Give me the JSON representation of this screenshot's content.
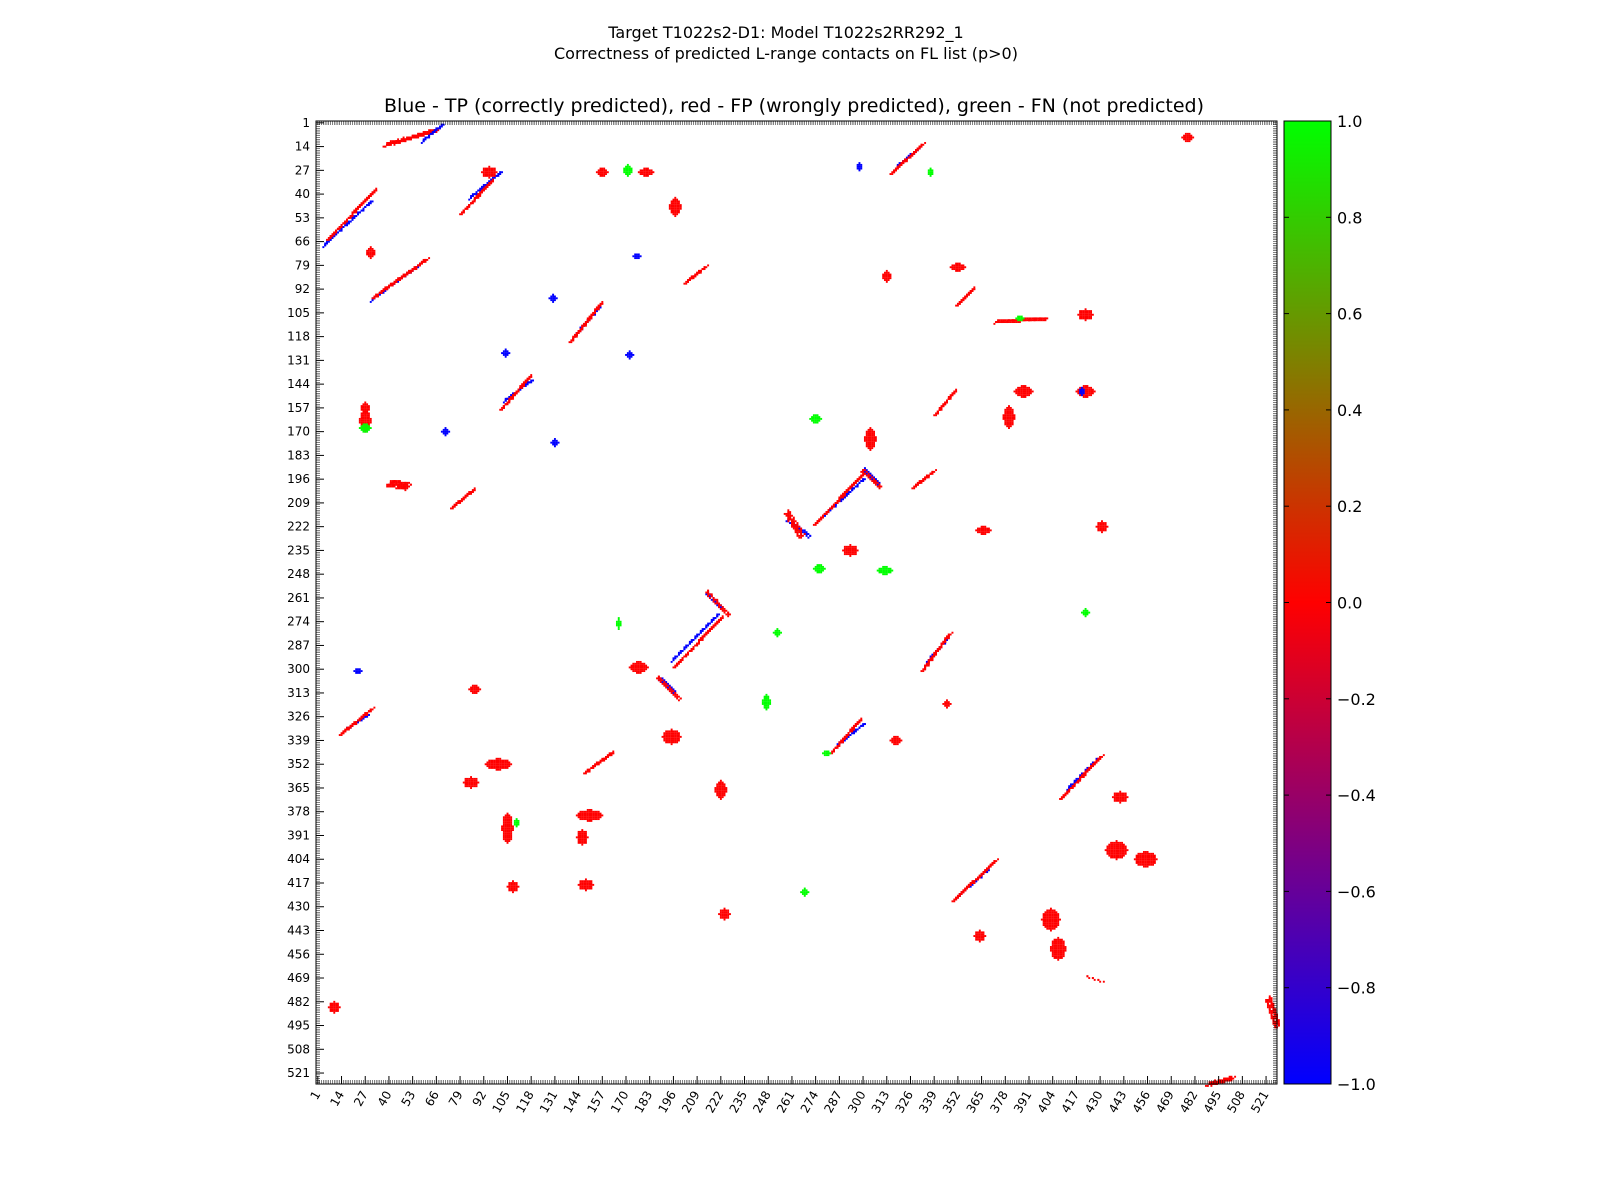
{
  "chart_data": {
    "type": "heatmap",
    "suptitle_line1": "Target T1022s2-D1: Model T1022s2RR292_1",
    "suptitle_line2": "Correctness of predicted L-range contacts on FL list (p>0)",
    "title": "Blue - TP (correctly predicted), red - FP (wrongly predicted), green - FN (not predicted)",
    "n_residues": 527,
    "ticks": [
      "1",
      "14",
      "27",
      "40",
      "53",
      "66",
      "79",
      "92",
      "105",
      "118",
      "131",
      "144",
      "157",
      "170",
      "183",
      "196",
      "209",
      "222",
      "235",
      "248",
      "261",
      "274",
      "287",
      "300",
      "313",
      "326",
      "339",
      "352",
      "365",
      "378",
      "391",
      "404",
      "417",
      "430",
      "443",
      "456",
      "469",
      "482",
      "495",
      "508",
      "521"
    ],
    "colorbar": {
      "range": [
        -1.0,
        1.0
      ],
      "ticks": [
        "1.0",
        "0.8",
        "0.6",
        "0.4",
        "0.2",
        "0.0",
        "−0.2",
        "−0.4",
        "−0.6",
        "−0.8",
        "−1.0"
      ],
      "colors": {
        "tp": "#0000ff",
        "fp": "#ff0000",
        "fn": "#00ff00"
      }
    },
    "segments": [
      {
        "kind": "tp",
        "x0": 4,
        "y0": 68,
        "x1": 30,
        "y1": 44,
        "w": 2
      },
      {
        "kind": "fp",
        "x0": 7,
        "y0": 64,
        "x1": 32,
        "y1": 38,
        "w": 4
      },
      {
        "kind": "tp",
        "x0": 30,
        "y0": 98,
        "x1": 56,
        "y1": 79,
        "w": 2
      },
      {
        "kind": "fp",
        "x0": 32,
        "y0": 96,
        "x1": 60,
        "y1": 76,
        "w": 5
      },
      {
        "kind": "fp",
        "x0": 38,
        "y0": 13,
        "x1": 66,
        "y1": 5,
        "w": 4
      },
      {
        "kind": "tp",
        "x0": 58,
        "y0": 11,
        "x1": 69,
        "y1": 2,
        "w": 2
      },
      {
        "kind": "tp",
        "x0": 84,
        "y0": 42,
        "x1": 101,
        "y1": 28,
        "w": 2
      },
      {
        "kind": "fp",
        "x0": 80,
        "y0": 50,
        "x1": 96,
        "y1": 33,
        "w": 4
      },
      {
        "kind": "tp",
        "x0": 142,
        "y0": 117,
        "x1": 155,
        "y1": 102,
        "w": 2
      },
      {
        "kind": "fp",
        "x0": 140,
        "y0": 120,
        "x1": 156,
        "y1": 100,
        "w": 4
      },
      {
        "kind": "tp",
        "x0": 103,
        "y0": 153,
        "x1": 118,
        "y1": 142,
        "w": 2
      },
      {
        "kind": "fp",
        "x0": 102,
        "y0": 157,
        "x1": 117,
        "y1": 140,
        "w": 4
      },
      {
        "kind": "fp",
        "x0": 75,
        "y0": 211,
        "x1": 86,
        "y1": 202,
        "w": 5
      },
      {
        "kind": "fp",
        "x0": 203,
        "y0": 88,
        "x1": 213,
        "y1": 80,
        "w": 5
      },
      {
        "kind": "fp",
        "x0": 40,
        "y0": 198,
        "x1": 50,
        "y1": 200,
        "w": 6
      },
      {
        "kind": "tp",
        "x0": 258,
        "y0": 218,
        "x1": 270,
        "y1": 227,
        "w": 2
      },
      {
        "kind": "fp",
        "x0": 258,
        "y0": 214,
        "x1": 266,
        "y1": 227,
        "w": 4
      },
      {
        "kind": "tp",
        "x0": 278,
        "y0": 216,
        "x1": 300,
        "y1": 196,
        "w": 2
      },
      {
        "kind": "fp",
        "x0": 274,
        "y0": 220,
        "x1": 300,
        "y1": 193,
        "w": 5
      },
      {
        "kind": "tp",
        "x0": 195,
        "y0": 295,
        "x1": 220,
        "y1": 270,
        "w": 2
      },
      {
        "kind": "fp",
        "x0": 197,
        "y0": 298,
        "x1": 222,
        "y1": 272,
        "w": 5
      },
      {
        "kind": "tp",
        "x0": 214,
        "y0": 258,
        "x1": 222,
        "y1": 266,
        "w": 2
      },
      {
        "kind": "fp",
        "x0": 214,
        "y0": 257,
        "x1": 226,
        "y1": 270,
        "w": 3
      },
      {
        "kind": "tp",
        "x0": 188,
        "y0": 305,
        "x1": 196,
        "y1": 312,
        "w": 2
      },
      {
        "kind": "fp",
        "x0": 187,
        "y0": 304,
        "x1": 199,
        "y1": 316,
        "w": 3
      },
      {
        "kind": "tp",
        "x0": 285,
        "y0": 342,
        "x1": 300,
        "y1": 330,
        "w": 2
      },
      {
        "kind": "fp",
        "x0": 283,
        "y0": 345,
        "x1": 298,
        "y1": 328,
        "w": 5
      },
      {
        "kind": "tp",
        "x0": 334,
        "y0": 297,
        "x1": 346,
        "y1": 283,
        "w": 2
      },
      {
        "kind": "fp",
        "x0": 333,
        "y0": 300,
        "x1": 347,
        "y1": 281,
        "w": 4
      },
      {
        "kind": "tp",
        "x0": 16,
        "y0": 333,
        "x1": 28,
        "y1": 325,
        "w": 2
      },
      {
        "kind": "fp",
        "x0": 14,
        "y0": 335,
        "x1": 30,
        "y1": 322,
        "w": 4
      },
      {
        "kind": "tp",
        "x0": 412,
        "y0": 365,
        "x1": 428,
        "y1": 349,
        "w": 2
      },
      {
        "kind": "fp",
        "x0": 409,
        "y0": 370,
        "x1": 430,
        "y1": 348,
        "w": 4
      },
      {
        "kind": "tp",
        "x0": 352,
        "y0": 424,
        "x1": 368,
        "y1": 410,
        "w": 2
      },
      {
        "kind": "fp",
        "x0": 350,
        "y0": 426,
        "x1": 372,
        "y1": 405,
        "w": 4
      },
      {
        "kind": "fp",
        "x0": 148,
        "y0": 356,
        "x1": 162,
        "y1": 346,
        "w": 5
      },
      {
        "kind": "tp",
        "x0": 318,
        "y0": 25,
        "x1": 330,
        "y1": 15,
        "w": 2
      },
      {
        "kind": "fp",
        "x0": 316,
        "y0": 28,
        "x1": 332,
        "y1": 13,
        "w": 4
      },
      {
        "kind": "tp",
        "x0": 300,
        "y0": 190,
        "x1": 308,
        "y1": 198,
        "w": 2
      },
      {
        "kind": "fp",
        "x0": 299,
        "y0": 191,
        "x1": 309,
        "y1": 200,
        "w": 3
      },
      {
        "kind": "fp",
        "x0": 340,
        "y0": 160,
        "x1": 350,
        "y1": 148,
        "w": 5
      },
      {
        "kind": "fp",
        "x0": 328,
        "y0": 200,
        "x1": 338,
        "y1": 192,
        "w": 5
      },
      {
        "kind": "fp",
        "x0": 352,
        "y0": 100,
        "x1": 360,
        "y1": 92,
        "w": 4
      },
      {
        "kind": "fp",
        "x0": 372,
        "y0": 110,
        "x1": 400,
        "y1": 108,
        "w": 3
      },
      {
        "kind": "fp",
        "x0": 422,
        "y0": 468,
        "x1": 431,
        "y1": 471,
        "w": 0
      },
      {
        "kind": "fp",
        "x0": 489,
        "y0": 527,
        "x1": 502,
        "y1": 524,
        "w": 4
      },
      {
        "kind": "fp",
        "x0": 522,
        "y0": 480,
        "x1": 527,
        "y1": 495,
        "w": 5
      }
    ],
    "blobs": [
      {
        "kind": "fp",
        "x": 100,
        "y": 352,
        "rx": 7,
        "ry": 3
      },
      {
        "kind": "fp",
        "x": 105,
        "y": 387,
        "rx": 3,
        "ry": 8
      },
      {
        "kind": "fp",
        "x": 108,
        "y": 419,
        "rx": 3,
        "ry": 3
      },
      {
        "kind": "fp",
        "x": 150,
        "y": 380,
        "rx": 7,
        "ry": 3
      },
      {
        "kind": "fp",
        "x": 146,
        "y": 392,
        "rx": 3,
        "ry": 4
      },
      {
        "kind": "fp",
        "x": 148,
        "y": 418,
        "rx": 4,
        "ry": 3
      },
      {
        "kind": "fp",
        "x": 222,
        "y": 366,
        "rx": 3,
        "ry": 5
      },
      {
        "kind": "fp",
        "x": 224,
        "y": 434,
        "rx": 3,
        "ry": 3
      },
      {
        "kind": "fp",
        "x": 195,
        "y": 337,
        "rx": 5,
        "ry": 4
      },
      {
        "kind": "fp",
        "x": 177,
        "y": 299,
        "rx": 5,
        "ry": 3
      },
      {
        "kind": "fp",
        "x": 85,
        "y": 362,
        "rx": 4,
        "ry": 3
      },
      {
        "kind": "fp",
        "x": 87,
        "y": 311,
        "rx": 3,
        "ry": 2
      },
      {
        "kind": "fp",
        "x": 197,
        "y": 47,
        "rx": 3,
        "ry": 5
      },
      {
        "kind": "fp",
        "x": 304,
        "y": 174,
        "rx": 3,
        "ry": 6
      },
      {
        "kind": "fp",
        "x": 388,
        "y": 148,
        "rx": 5,
        "ry": 3
      },
      {
        "kind": "fp",
        "x": 380,
        "y": 162,
        "rx": 3,
        "ry": 6
      },
      {
        "kind": "fp",
        "x": 422,
        "y": 148,
        "rx": 5,
        "ry": 3
      },
      {
        "kind": "fp",
        "x": 422,
        "y": 106,
        "rx": 4,
        "ry": 3
      },
      {
        "kind": "fp",
        "x": 431,
        "y": 222,
        "rx": 3,
        "ry": 3
      },
      {
        "kind": "fp",
        "x": 366,
        "y": 224,
        "rx": 4,
        "ry": 2
      },
      {
        "kind": "fp",
        "x": 441,
        "y": 370,
        "rx": 4,
        "ry": 3
      },
      {
        "kind": "fp",
        "x": 439,
        "y": 399,
        "rx": 6,
        "ry": 5
      },
      {
        "kind": "fp",
        "x": 455,
        "y": 404,
        "rx": 6,
        "ry": 4
      },
      {
        "kind": "fp",
        "x": 403,
        "y": 437,
        "rx": 5,
        "ry": 6
      },
      {
        "kind": "fp",
        "x": 407,
        "y": 453,
        "rx": 4,
        "ry": 6
      },
      {
        "kind": "fp",
        "x": 364,
        "y": 446,
        "rx": 3,
        "ry": 3
      },
      {
        "kind": "fp",
        "x": 318,
        "y": 339,
        "rx": 3,
        "ry": 2
      },
      {
        "kind": "fp",
        "x": 346,
        "y": 319,
        "rx": 2,
        "ry": 2
      },
      {
        "kind": "fp",
        "x": 10,
        "y": 485,
        "rx": 3,
        "ry": 3
      },
      {
        "kind": "fp",
        "x": 27,
        "y": 164,
        "rx": 3,
        "ry": 6
      },
      {
        "kind": "fp",
        "x": 27,
        "y": 157,
        "rx": 2,
        "ry": 3
      },
      {
        "kind": "fp",
        "x": 181,
        "y": 28,
        "rx": 4,
        "ry": 2
      },
      {
        "kind": "fp",
        "x": 157,
        "y": 28,
        "rx": 3,
        "ry": 2
      },
      {
        "kind": "fp",
        "x": 293,
        "y": 235,
        "rx": 4,
        "ry": 3
      },
      {
        "kind": "fp",
        "x": 313,
        "y": 85,
        "rx": 2,
        "ry": 3
      },
      {
        "kind": "fp",
        "x": 352,
        "y": 80,
        "rx": 4,
        "ry": 2
      },
      {
        "kind": "fp",
        "x": 478,
        "y": 9,
        "rx": 3,
        "ry": 2
      },
      {
        "kind": "fp",
        "x": 30,
        "y": 72,
        "rx": 2,
        "ry": 3
      },
      {
        "kind": "fp",
        "x": 95,
        "y": 28,
        "rx": 4,
        "ry": 3
      },
      {
        "kind": "tp",
        "x": 298,
        "y": 25,
        "rx": 1,
        "ry": 2
      },
      {
        "kind": "tp",
        "x": 130,
        "y": 97,
        "rx": 2,
        "ry": 2
      },
      {
        "kind": "tp",
        "x": 104,
        "y": 127,
        "rx": 2,
        "ry": 2
      },
      {
        "kind": "tp",
        "x": 131,
        "y": 176,
        "rx": 2,
        "ry": 2
      },
      {
        "kind": "tp",
        "x": 172,
        "y": 128,
        "rx": 2,
        "ry": 2
      },
      {
        "kind": "tp",
        "x": 71,
        "y": 170,
        "rx": 2,
        "ry": 2
      },
      {
        "kind": "tp",
        "x": 23,
        "y": 301,
        "rx": 2,
        "ry": 1
      },
      {
        "kind": "tp",
        "x": 176,
        "y": 74,
        "rx": 2,
        "ry": 1
      },
      {
        "kind": "tp",
        "x": 420,
        "y": 148,
        "rx": 1,
        "ry": 2
      },
      {
        "kind": "fn",
        "x": 171,
        "y": 27,
        "rx": 2,
        "ry": 3
      },
      {
        "kind": "fn",
        "x": 27,
        "y": 168,
        "rx": 3,
        "ry": 2
      },
      {
        "kind": "fn",
        "x": 274,
        "y": 163,
        "rx": 3,
        "ry": 2
      },
      {
        "kind": "fn",
        "x": 312,
        "y": 246,
        "rx": 4,
        "ry": 2
      },
      {
        "kind": "fn",
        "x": 276,
        "y": 245,
        "rx": 3,
        "ry": 2
      },
      {
        "kind": "fn",
        "x": 247,
        "y": 318,
        "rx": 2,
        "ry": 4
      },
      {
        "kind": "fn",
        "x": 166,
        "y": 275,
        "rx": 1,
        "ry": 3
      },
      {
        "kind": "fn",
        "x": 268,
        "y": 422,
        "rx": 2,
        "ry": 2
      },
      {
        "kind": "fn",
        "x": 280,
        "y": 346,
        "rx": 2,
        "ry": 1
      },
      {
        "kind": "fn",
        "x": 386,
        "y": 108,
        "rx": 2,
        "ry": 1
      },
      {
        "kind": "fn",
        "x": 337,
        "y": 28,
        "rx": 1,
        "ry": 2
      },
      {
        "kind": "fn",
        "x": 422,
        "y": 269,
        "rx": 2,
        "ry": 2
      },
      {
        "kind": "fn",
        "x": 253,
        "y": 280,
        "rx": 2,
        "ry": 2
      },
      {
        "kind": "fn",
        "x": 110,
        "y": 384,
        "rx": 1,
        "ry": 2
      }
    ]
  }
}
